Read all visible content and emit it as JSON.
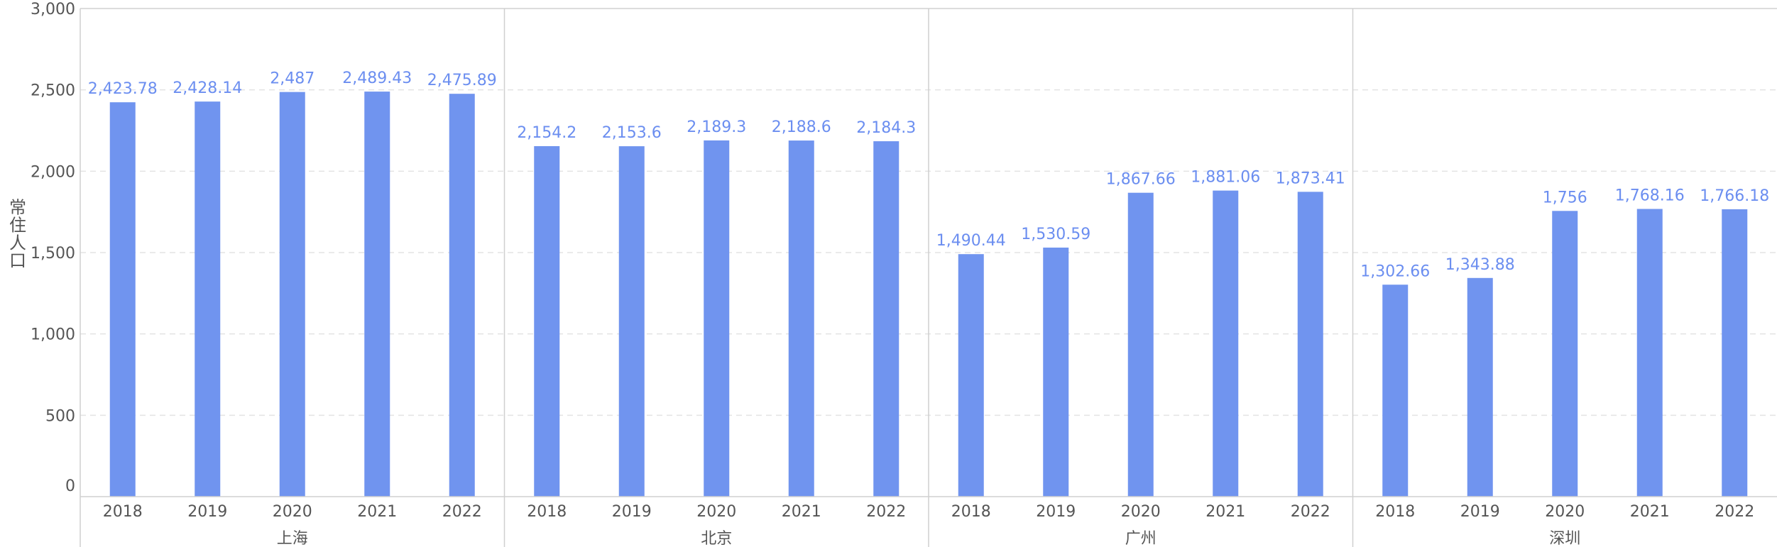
{
  "chart_data": {
    "type": "bar",
    "ylabel": "常住人口",
    "ylim": [
      0,
      3000
    ],
    "yticks": [
      0,
      500,
      1000,
      1500,
      2000,
      2500,
      3000
    ],
    "ytick_labels": [
      "0",
      "500",
      "1,000",
      "1,500",
      "2,000",
      "2,500",
      "3,000"
    ],
    "grid": true,
    "bar_color": "#7094ef",
    "label_color": "#6b8ef0",
    "groups": [
      {
        "name": "上海",
        "categories": [
          "2018",
          "2019",
          "2020",
          "2021",
          "2022"
        ],
        "values": [
          2423.78,
          2428.14,
          2487,
          2489.43,
          2475.89
        ],
        "labels": [
          "2,423.78",
          "2,428.14",
          "2,487",
          "2,489.43",
          "2,475.89"
        ]
      },
      {
        "name": "北京",
        "categories": [
          "2018",
          "2019",
          "2020",
          "2021",
          "2022"
        ],
        "values": [
          2154.2,
          2153.6,
          2189.3,
          2188.6,
          2184.3
        ],
        "labels": [
          "2,154.2",
          "2,153.6",
          "2,189.3",
          "2,188.6",
          "2,184.3"
        ]
      },
      {
        "name": "广州",
        "categories": [
          "2018",
          "2019",
          "2020",
          "2021",
          "2022"
        ],
        "values": [
          1490.44,
          1530.59,
          1867.66,
          1881.06,
          1873.41
        ],
        "labels": [
          "1,490.44",
          "1,530.59",
          "1,867.66",
          "1,881.06",
          "1,873.41"
        ]
      },
      {
        "name": "深圳",
        "categories": [
          "2018",
          "2019",
          "2020",
          "2021",
          "2022"
        ],
        "values": [
          1302.66,
          1343.88,
          1756,
          1768.16,
          1766.18
        ],
        "labels": [
          "1,302.66",
          "1,343.88",
          "1,756",
          "1,768.16",
          "1,766.18"
        ]
      }
    ]
  }
}
